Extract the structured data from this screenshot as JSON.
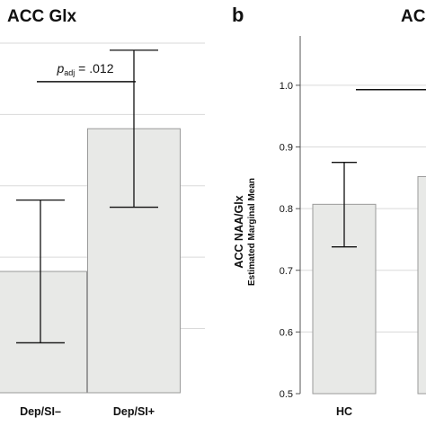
{
  "chart_data": [
    {
      "type": "bar",
      "panel_label": "",
      "title": "ACC Glx",
      "xlabel": "",
      "ylabel": "",
      "categories": [
        "Dep/SI–",
        "Dep/SI+"
      ],
      "values": [
        0.64,
        0.74
      ],
      "error_low": [
        0.59,
        0.685
      ],
      "error_high": [
        0.69,
        0.795
      ],
      "ylim": [
        0.555,
        0.805
      ],
      "gridlines": [
        0.6,
        0.65,
        0.7,
        0.75,
        0.8
      ],
      "grid": true,
      "annotation": {
        "p_symbol": "p",
        "p_subscript": "adj",
        "p_text": " = .012",
        "from": 0,
        "to": 1,
        "y": 0.773
      }
    },
    {
      "type": "bar",
      "panel_label": "b",
      "title": "ACC",
      "xlabel": "",
      "ylabel": "ACC NAA/Glx",
      "ylabel2": "Estimated Marginal Mean",
      "categories": [
        "HC",
        ""
      ],
      "values": [
        0.807,
        0.852
      ],
      "error_low": [
        0.738,
        null
      ],
      "error_high": [
        0.875,
        null
      ],
      "ylim": [
        0.5,
        1.08
      ],
      "yticks": [
        0.5,
        0.6,
        0.7,
        0.8,
        0.9,
        1.0
      ],
      "ytick_labels": [
        "0.5",
        "0.6",
        "0.7",
        "0.8",
        "0.9",
        "1.0"
      ],
      "grid": true,
      "annotation": {
        "y": 0.993
      }
    }
  ],
  "colors": {
    "bar_fill": "#e8e9e7",
    "bar_stroke": "#9a9a9a",
    "grid": "#dadada",
    "ink": "#111111"
  }
}
